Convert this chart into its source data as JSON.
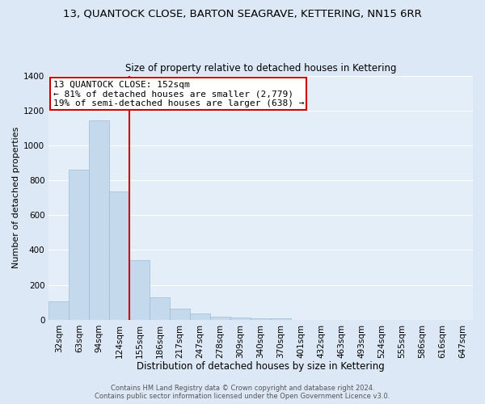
{
  "title": "13, QUANTOCK CLOSE, BARTON SEAGRAVE, KETTERING, NN15 6RR",
  "subtitle": "Size of property relative to detached houses in Kettering",
  "xlabel": "Distribution of detached houses by size in Kettering",
  "ylabel": "Number of detached properties",
  "bar_labels": [
    "32sqm",
    "63sqm",
    "94sqm",
    "124sqm",
    "155sqm",
    "186sqm",
    "217sqm",
    "247sqm",
    "278sqm",
    "309sqm",
    "340sqm",
    "370sqm",
    "401sqm",
    "432sqm",
    "463sqm",
    "493sqm",
    "524sqm",
    "555sqm",
    "586sqm",
    "616sqm",
    "647sqm"
  ],
  "bar_values": [
    107,
    860,
    1141,
    735,
    343,
    130,
    62,
    35,
    20,
    15,
    8,
    7,
    0,
    0,
    0,
    0,
    0,
    0,
    0,
    0,
    0
  ],
  "bar_color": "#c5d9ed",
  "bar_edgecolor": "#9bbdd6",
  "ylim": [
    0,
    1400
  ],
  "yticks": [
    0,
    200,
    400,
    600,
    800,
    1000,
    1200,
    1400
  ],
  "vline_color": "#cc0000",
  "annotation_title": "13 QUANTOCK CLOSE: 152sqm",
  "annotation_line1": "← 81% of detached houses are smaller (2,779)",
  "annotation_line2": "19% of semi-detached houses are larger (638) →",
  "annotation_box_color": "#ffffff",
  "annotation_box_edgecolor": "#cc0000",
  "footer1": "Contains HM Land Registry data © Crown copyright and database right 2024.",
  "footer2": "Contains public sector information licensed under the Open Government Licence v3.0.",
  "background_color": "#dce8f5",
  "plot_background": "#e4eef8",
  "grid_color": "#ffffff",
  "title_fontsize": 9.5,
  "subtitle_fontsize": 8.5,
  "xlabel_fontsize": 8.5,
  "ylabel_fontsize": 8,
  "footer_fontsize": 6,
  "tick_fontsize": 7.5,
  "annot_fontsize": 8
}
